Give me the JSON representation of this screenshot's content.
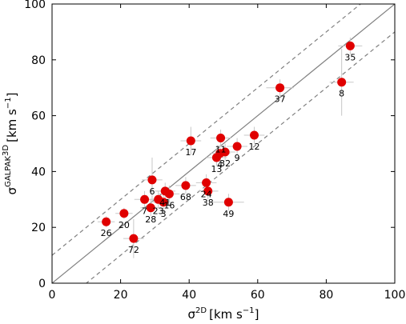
{
  "chart_data": {
    "type": "scatter",
    "xlabel": {
      "sym": "σ",
      "sup": "2D",
      "unit": "[km s",
      "unit_sup": "−1",
      "unit_end": "]"
    },
    "ylabel": {
      "sym": "σ",
      "sup": "GALPAK",
      "sup2": "3D",
      "unit": "[km s",
      "unit_sup": "−1",
      "unit_end": "]"
    },
    "xlim": [
      0,
      100
    ],
    "ylim": [
      0,
      100
    ],
    "xticks": [
      0,
      20,
      40,
      60,
      80,
      100
    ],
    "yticks": [
      0,
      20,
      40,
      60,
      80,
      100
    ],
    "grid": false,
    "reference_lines": [
      {
        "style": "solid",
        "offset": 0
      },
      {
        "style": "dashed",
        "offset": 10
      },
      {
        "style": "dashed",
        "offset": -10
      }
    ],
    "point_color": "#e00000",
    "line_color": "#808080",
    "errorbar_color": "#c8c8c8",
    "points": [
      {
        "label": "26",
        "x": 15.8,
        "y": 22.0,
        "xerr": 2.5,
        "yerr": 2.0
      },
      {
        "label": "20",
        "x": 21.0,
        "y": 25.0,
        "xerr": 2.5,
        "yerr": 2.0
      },
      {
        "label": "72",
        "x": 23.8,
        "y": 16.0,
        "xerr": 3.0,
        "yerr": 7.0
      },
      {
        "label": "7",
        "x": 27.0,
        "y": 30.0,
        "xerr": 3.0,
        "yerr": 3.0
      },
      {
        "label": "28",
        "x": 28.8,
        "y": 27.0,
        "xerr": 3.0,
        "yerr": 3.0
      },
      {
        "label": "6",
        "x": 29.2,
        "y": 37.0,
        "xerr": 3.0,
        "yerr": 8.0
      },
      {
        "label": "23",
        "x": 31.0,
        "y": 30.0,
        "xerr": 3.0,
        "yerr": 3.0
      },
      {
        "label": "3",
        "x": 32.5,
        "y": 29.0,
        "xerr": 3.0,
        "yerr": 3.0
      },
      {
        "label": "41",
        "x": 33.0,
        "y": 33.0,
        "xerr": 3.0,
        "yerr": 3.0
      },
      {
        "label": "16",
        "x": 34.2,
        "y": 32.0,
        "xerr": 3.0,
        "yerr": 3.0
      },
      {
        "label": "68",
        "x": 39.0,
        "y": 35.0,
        "xerr": 3.0,
        "yerr": 3.0
      },
      {
        "label": "17",
        "x": 40.5,
        "y": 51.0,
        "xerr": 3.0,
        "yerr": 5.0
      },
      {
        "label": "24",
        "x": 45.0,
        "y": 36.0,
        "xerr": 3.0,
        "yerr": 3.0
      },
      {
        "label": "38",
        "x": 45.5,
        "y": 33.0,
        "xerr": 3.0,
        "yerr": 3.0
      },
      {
        "label": "13",
        "x": 48.0,
        "y": 45.0,
        "xerr": 3.0,
        "yerr": 3.0
      },
      {
        "label": "4",
        "x": 49.0,
        "y": 46.5,
        "xerr": 3.0,
        "yerr": 3.0
      },
      {
        "label": "11",
        "x": 49.2,
        "y": 52.0,
        "xerr": 3.0,
        "yerr": 3.0
      },
      {
        "label": "32",
        "x": 50.5,
        "y": 47.0,
        "xerr": 3.0,
        "yerr": 3.0
      },
      {
        "label": "49",
        "x": 51.5,
        "y": 29.0,
        "xerr": 4.5,
        "yerr": 3.0
      },
      {
        "label": "9",
        "x": 54.0,
        "y": 49.0,
        "xerr": 3.0,
        "yerr": 3.0
      },
      {
        "label": "12",
        "x": 59.0,
        "y": 53.0,
        "xerr": 3.0,
        "yerr": 3.0
      },
      {
        "label": "37",
        "x": 66.5,
        "y": 70.0,
        "xerr": 4.0,
        "yerr": 3.0
      },
      {
        "label": "8",
        "x": 84.5,
        "y": 72.0,
        "xerr": 3.5,
        "yerr": 12.0
      },
      {
        "label": "35",
        "x": 87.0,
        "y": 85.0,
        "xerr": 3.5,
        "yerr": 3.0
      }
    ]
  }
}
